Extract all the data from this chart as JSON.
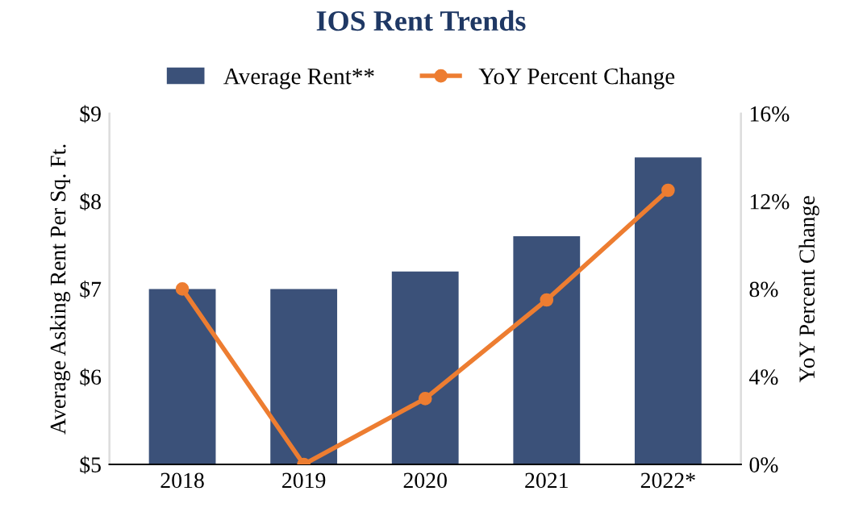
{
  "chart_data": {
    "type": "bar",
    "title": "IOS Rent Trends",
    "categories": [
      "2018",
      "2019",
      "2020",
      "2021",
      "2022*"
    ],
    "series": [
      {
        "name": "Average Rent**",
        "color": "#3b5179",
        "values": [
          7.0,
          7.0,
          7.2,
          7.6,
          8.5
        ]
      },
      {
        "name": "YoY Percent Change",
        "type": "line",
        "axis": "y2",
        "color": "#ed7d31",
        "values": [
          8.0,
          0.0,
          3.0,
          7.5,
          12.5
        ]
      }
    ],
    "ylabel": "Average Asking Rent Per Sq. Ft.",
    "y2label": "YoY Percent Change",
    "ylim": [
      5,
      9
    ],
    "yticks": [
      {
        "value": 5,
        "label": "$5"
      },
      {
        "value": 6,
        "label": "$6"
      },
      {
        "value": 7,
        "label": "$7"
      },
      {
        "value": 8,
        "label": "$8"
      },
      {
        "value": 9,
        "label": "$9"
      }
    ],
    "y2lim": [
      0,
      16
    ],
    "y2ticks": [
      {
        "value": 0,
        "label": "0%"
      },
      {
        "value": 4,
        "label": "4%"
      },
      {
        "value": 8,
        "label": "8%"
      },
      {
        "value": 12,
        "label": "12%"
      },
      {
        "value": 16,
        "label": "16%"
      }
    ],
    "legend": "top",
    "marker": "circle",
    "line_style": "solid",
    "grid": false
  }
}
